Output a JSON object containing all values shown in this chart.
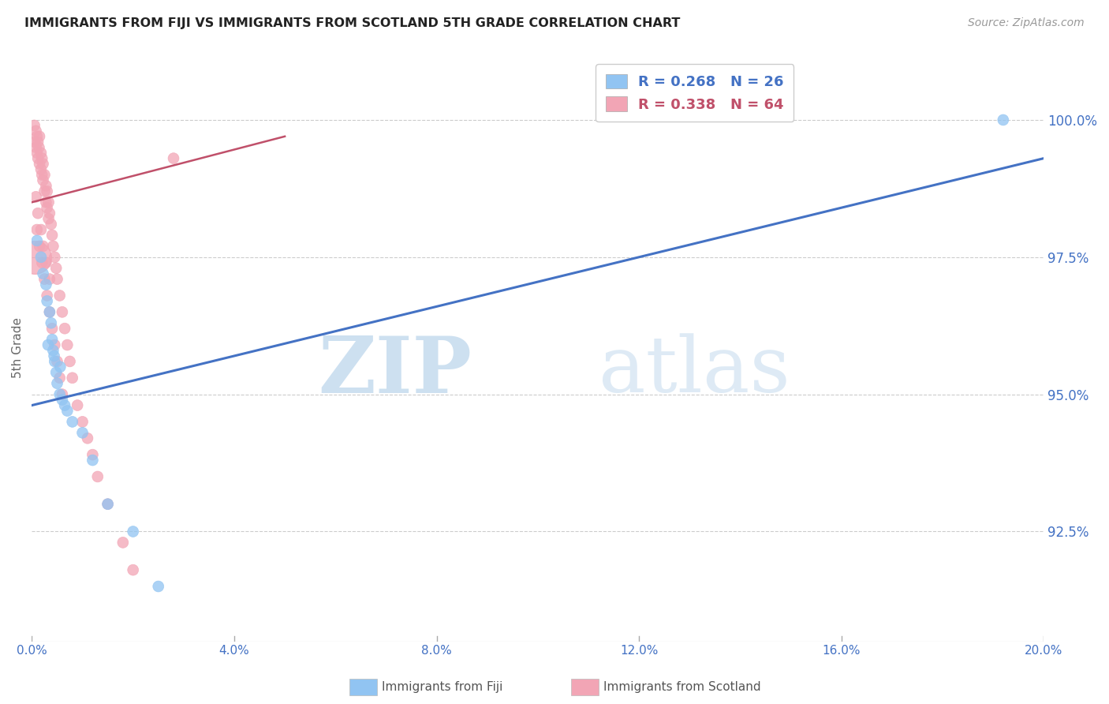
{
  "title": "IMMIGRANTS FROM FIJI VS IMMIGRANTS FROM SCOTLAND 5TH GRADE CORRELATION CHART",
  "source": "Source: ZipAtlas.com",
  "ylabel": "5th Grade",
  "ytick_labels": [
    "92.5%",
    "95.0%",
    "97.5%",
    "100.0%"
  ],
  "ytick_values": [
    92.5,
    95.0,
    97.5,
    100.0
  ],
  "xlim": [
    0.0,
    20.0
  ],
  "ylim": [
    90.5,
    101.2
  ],
  "fiji_color": "#91C4F2",
  "scotland_color": "#F2A5B5",
  "fiji_line_color": "#4472C4",
  "scotland_line_color": "#C0506A",
  "legend_fiji_color": "#4472C4",
  "legend_scotland_color": "#C0506A",
  "legend_fiji_label": "R = 0.268   N = 26",
  "legend_scotland_label": "R = 0.338   N = 64",
  "blue_line_x": [
    0.0,
    20.0
  ],
  "blue_line_y": [
    94.8,
    99.3
  ],
  "pink_line_x": [
    0.0,
    5.0
  ],
  "pink_line_y": [
    98.5,
    99.7
  ],
  "fiji_x": [
    0.1,
    0.18,
    0.22,
    0.28,
    0.3,
    0.35,
    0.38,
    0.4,
    0.42,
    0.45,
    0.48,
    0.5,
    0.55,
    0.6,
    0.65,
    0.7,
    0.8,
    1.0,
    1.2,
    1.5,
    2.0,
    2.5,
    0.32,
    0.44,
    0.56,
    19.2
  ],
  "fiji_y": [
    97.8,
    97.5,
    97.2,
    97.0,
    96.7,
    96.5,
    96.3,
    96.0,
    95.8,
    95.6,
    95.4,
    95.2,
    95.0,
    94.9,
    94.8,
    94.7,
    94.5,
    94.3,
    93.8,
    93.0,
    92.5,
    91.5,
    95.9,
    95.7,
    95.5,
    100.0
  ],
  "fiji_sizes": [
    100,
    100,
    100,
    100,
    100,
    100,
    100,
    100,
    100,
    100,
    100,
    100,
    100,
    100,
    100,
    100,
    100,
    100,
    100,
    100,
    100,
    100,
    100,
    100,
    100,
    100
  ],
  "scotland_x": [
    0.05,
    0.05,
    0.08,
    0.08,
    0.1,
    0.1,
    0.12,
    0.12,
    0.14,
    0.15,
    0.15,
    0.18,
    0.18,
    0.2,
    0.2,
    0.22,
    0.22,
    0.25,
    0.25,
    0.28,
    0.28,
    0.3,
    0.3,
    0.33,
    0.33,
    0.35,
    0.38,
    0.4,
    0.42,
    0.45,
    0.48,
    0.5,
    0.55,
    0.6,
    0.65,
    0.7,
    0.75,
    0.8,
    0.9,
    1.0,
    1.1,
    1.2,
    1.3,
    1.5,
    1.8,
    2.0,
    0.1,
    0.15,
    0.2,
    0.25,
    0.3,
    0.35,
    0.4,
    0.45,
    0.5,
    0.55,
    0.6,
    2.8,
    0.08,
    0.12,
    0.18,
    0.22,
    0.28,
    0.35
  ],
  "scotland_y": [
    99.9,
    99.6,
    99.8,
    99.5,
    99.7,
    99.4,
    99.6,
    99.3,
    99.5,
    99.7,
    99.2,
    99.4,
    99.1,
    99.3,
    99.0,
    99.2,
    98.9,
    99.0,
    98.7,
    98.8,
    98.5,
    98.7,
    98.4,
    98.5,
    98.2,
    98.3,
    98.1,
    97.9,
    97.7,
    97.5,
    97.3,
    97.1,
    96.8,
    96.5,
    96.2,
    95.9,
    95.6,
    95.3,
    94.8,
    94.5,
    94.2,
    93.9,
    93.5,
    93.0,
    92.3,
    91.8,
    98.0,
    97.7,
    97.4,
    97.1,
    96.8,
    96.5,
    96.2,
    95.9,
    95.6,
    95.3,
    95.0,
    99.3,
    98.6,
    98.3,
    98.0,
    97.7,
    97.4,
    97.1
  ],
  "scotland_sizes": [
    100,
    100,
    100,
    100,
    100,
    100,
    100,
    100,
    100,
    100,
    100,
    100,
    100,
    100,
    100,
    100,
    100,
    100,
    100,
    100,
    100,
    100,
    100,
    100,
    100,
    100,
    100,
    100,
    100,
    100,
    100,
    100,
    100,
    100,
    100,
    100,
    100,
    100,
    100,
    100,
    100,
    100,
    100,
    100,
    100,
    100,
    100,
    100,
    100,
    100,
    100,
    100,
    100,
    100,
    100,
    100,
    100,
    100,
    100,
    100,
    100,
    100,
    100,
    100
  ],
  "scotland_big_dot_x": 0.05,
  "scotland_big_dot_y": 97.5,
  "scotland_big_dot_size": 900,
  "watermark_zip": "ZIP",
  "watermark_atlas": "atlas",
  "background_color": "#FFFFFF",
  "grid_color": "#CCCCCC",
  "xtick_positions": [
    0,
    4,
    8,
    12,
    16,
    20
  ],
  "xtick_labels": [
    "0.0%",
    "4.0%",
    "8.0%",
    "12.0%",
    "16.0%",
    "20.0%"
  ]
}
